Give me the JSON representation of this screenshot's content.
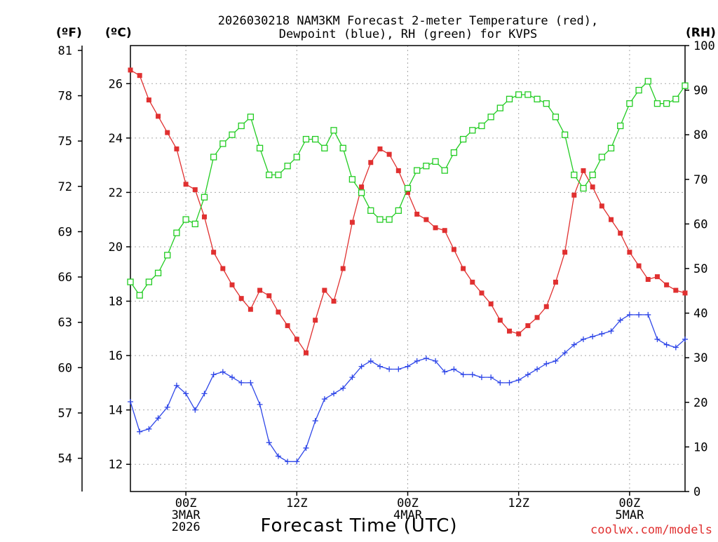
{
  "chart_data": {
    "type": "line",
    "title_line1": "2026030218 NAM3KM Forecast 2-meter Temperature (red),",
    "title_line2": "Dewpoint (blue), RH (green) for KVPS",
    "unit_f": "(ºF)",
    "unit_c": "(ºC)",
    "unit_rh": "(RH)",
    "xlabel": "Forecast Time (UTC)",
    "credit": "coolwx.com/models",
    "x_range": [
      18,
      78
    ],
    "c_range": [
      11.0,
      27.4
    ],
    "f_range": [
      51.8,
      81.32
    ],
    "rh_range": [
      0,
      100
    ],
    "f_ticks": [
      54,
      57,
      60,
      63,
      66,
      69,
      72,
      75,
      78,
      81
    ],
    "c_ticks": [
      12,
      14,
      16,
      18,
      20,
      22,
      24,
      26
    ],
    "rh_ticks": [
      0,
      10,
      20,
      30,
      40,
      50,
      60,
      70,
      80,
      90,
      100
    ],
    "x_ticks": [
      {
        "x": 24,
        "lines": [
          "00Z",
          "3MAR",
          "2026"
        ]
      },
      {
        "x": 36,
        "lines": [
          "12Z"
        ]
      },
      {
        "x": 48,
        "lines": [
          "00Z",
          "4MAR"
        ]
      },
      {
        "x": 60,
        "lines": [
          "12Z"
        ]
      },
      {
        "x": 72,
        "lines": [
          "00Z",
          "5MAR"
        ]
      }
    ],
    "hours": [
      18,
      19,
      20,
      21,
      22,
      23,
      24,
      25,
      26,
      27,
      28,
      29,
      30,
      31,
      32,
      33,
      34,
      35,
      36,
      37,
      38,
      39,
      40,
      41,
      42,
      43,
      44,
      45,
      46,
      47,
      48,
      49,
      50,
      51,
      52,
      53,
      54,
      55,
      56,
      57,
      58,
      59,
      60,
      61,
      62,
      63,
      64,
      65,
      66,
      67,
      68,
      69,
      70,
      71,
      72,
      73,
      74,
      75,
      76,
      77,
      78
    ],
    "series": [
      {
        "name": "Temperature (C)",
        "color": "#e03030",
        "marker": "filled-square",
        "axis": "c",
        "values": [
          26.5,
          26.3,
          25.4,
          24.8,
          24.2,
          23.6,
          22.3,
          22.1,
          21.1,
          19.8,
          19.2,
          18.6,
          18.1,
          17.7,
          18.4,
          18.2,
          17.6,
          17.1,
          16.6,
          16.1,
          17.3,
          18.4,
          18.0,
          19.2,
          20.9,
          22.2,
          23.1,
          23.6,
          23.4,
          22.8,
          22.0,
          21.2,
          21.0,
          20.7,
          20.6,
          19.9,
          19.2,
          18.7,
          18.3,
          17.9,
          17.3,
          16.9,
          16.8,
          17.1,
          17.4,
          17.8,
          18.7,
          19.8,
          21.9,
          22.8,
          22.2,
          21.5,
          21.0,
          20.5,
          19.8,
          19.3,
          18.8,
          18.9,
          18.6,
          18.4,
          18.3
        ]
      },
      {
        "name": "Dewpoint (C)",
        "color": "#2e46e8",
        "marker": "plus",
        "axis": "c",
        "values": [
          14.3,
          13.2,
          13.3,
          13.7,
          14.1,
          14.9,
          14.6,
          14.0,
          14.6,
          15.3,
          15.4,
          15.2,
          15.0,
          15.0,
          14.2,
          12.8,
          12.3,
          12.1,
          12.1,
          12.6,
          13.6,
          14.4,
          14.6,
          14.8,
          15.2,
          15.6,
          15.8,
          15.6,
          15.5,
          15.5,
          15.6,
          15.8,
          15.9,
          15.8,
          15.4,
          15.5,
          15.3,
          15.3,
          15.2,
          15.2,
          15.0,
          15.0,
          15.1,
          15.3,
          15.5,
          15.7,
          15.8,
          16.1,
          16.4,
          16.6,
          16.7,
          16.8,
          16.9,
          17.3,
          17.5,
          17.5,
          17.5,
          16.6,
          16.4,
          16.3,
          16.6
        ]
      },
      {
        "name": "RH (%)",
        "color": "#22cc22",
        "marker": "open-square",
        "axis": "rh",
        "values": [
          47,
          44,
          47,
          49,
          53,
          58,
          61,
          60,
          66,
          75,
          78,
          80,
          82,
          84,
          77,
          71,
          71,
          73,
          75,
          79,
          79,
          77,
          81,
          77,
          70,
          67,
          63,
          61,
          61,
          63,
          68,
          72,
          73,
          74,
          72,
          76,
          79,
          81,
          82,
          84,
          86,
          88,
          89,
          89,
          88,
          87,
          84,
          80,
          71,
          68,
          71,
          75,
          77,
          82,
          87,
          90,
          92,
          87,
          87,
          88,
          91
        ]
      }
    ]
  }
}
